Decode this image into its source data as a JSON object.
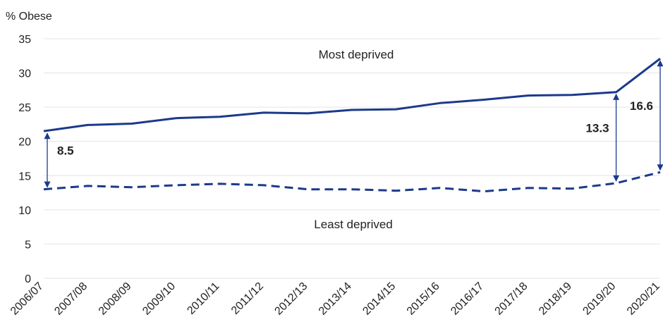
{
  "chart_data": {
    "type": "line",
    "ylabel": "% Obese",
    "ylim": [
      0,
      35
    ],
    "yticks": [
      0,
      5,
      10,
      15,
      20,
      25,
      30,
      35
    ],
    "categories": [
      "2006/07",
      "2007/08",
      "2008/09",
      "2009/10",
      "2010/11",
      "2011/12",
      "2012/13",
      "2013/14",
      "2014/15",
      "2015/16",
      "2016/17",
      "2017/18",
      "2018/19",
      "2019/20",
      "2020/21"
    ],
    "series": [
      {
        "name": "Most deprived",
        "style": "solid",
        "color": "#1b3a8c",
        "values": [
          21.5,
          22.4,
          22.6,
          23.4,
          23.6,
          24.2,
          24.1,
          24.6,
          24.7,
          25.6,
          26.1,
          26.7,
          26.8,
          27.2,
          32.1
        ]
      },
      {
        "name": "Least deprived",
        "style": "dashed",
        "color": "#1b3a8c",
        "values": [
          13.0,
          13.5,
          13.3,
          13.6,
          13.8,
          13.6,
          13.0,
          13.0,
          12.8,
          13.2,
          12.7,
          13.2,
          13.1,
          13.9,
          15.5
        ]
      }
    ],
    "gaps": [
      {
        "label": "8.5",
        "category": "2006/07"
      },
      {
        "label": "13.3",
        "category": "2019/20"
      },
      {
        "label": "16.6",
        "category": "2020/21"
      }
    ],
    "grid": "horizontal",
    "legend": "inline labels"
  }
}
